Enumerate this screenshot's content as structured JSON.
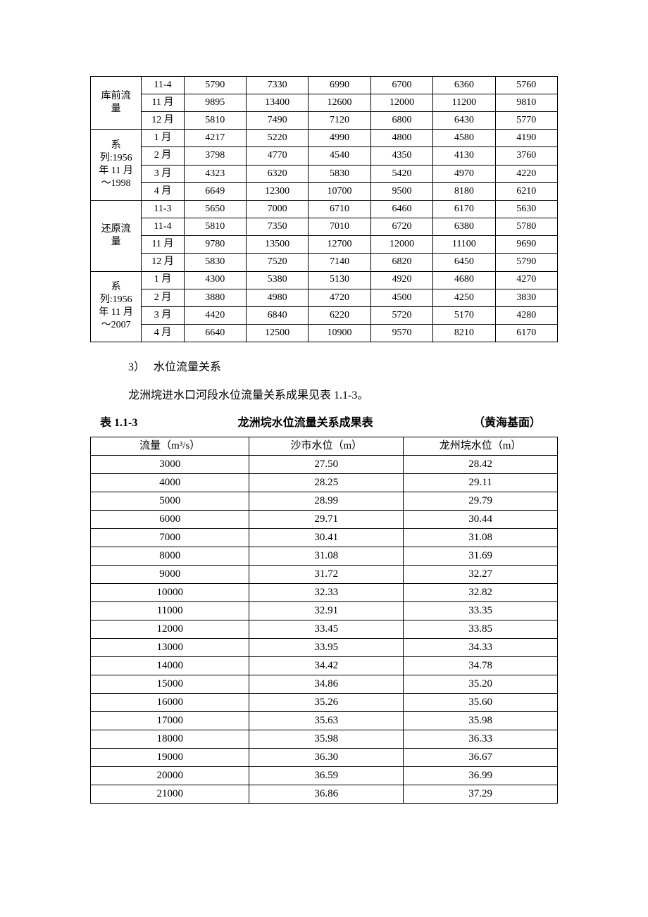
{
  "table1": {
    "col_widths": {
      "label": 72,
      "month": 60,
      "val": 88
    },
    "groups": [
      {
        "label": "库前流\n量",
        "label_rows": 3,
        "rows": [
          {
            "month": "11-4",
            "vals": [
              "5790",
              "7330",
              "6990",
              "6700",
              "6360",
              "5760"
            ]
          },
          {
            "month": "11 月",
            "vals": [
              "9895",
              "13400",
              "12600",
              "12000",
              "11200",
              "9810"
            ]
          },
          {
            "month": "12 月",
            "vals": [
              "5810",
              "7490",
              "7120",
              "6800",
              "6430",
              "5770"
            ]
          }
        ]
      },
      {
        "label": "系\n列:1956\n年 11 月\n～1998",
        "label_rows": 4,
        "rows": [
          {
            "month": "1 月",
            "vals": [
              "4217",
              "5220",
              "4990",
              "4800",
              "4580",
              "4190"
            ]
          },
          {
            "month": "2 月",
            "vals": [
              "3798",
              "4770",
              "4540",
              "4350",
              "4130",
              "3760"
            ]
          },
          {
            "month": "3 月",
            "vals": [
              "4323",
              "6320",
              "5830",
              "5420",
              "4970",
              "4220"
            ]
          },
          {
            "month": "4 月",
            "vals": [
              "6649",
              "12300",
              "10700",
              "9500",
              "8180",
              "6210"
            ]
          }
        ]
      },
      {
        "label": "还原流\n量",
        "label_rows": 4,
        "rows": [
          {
            "month": "11-3",
            "vals": [
              "5650",
              "7000",
              "6710",
              "6460",
              "6170",
              "5630"
            ]
          },
          {
            "month": "11-4",
            "vals": [
              "5810",
              "7350",
              "7010",
              "6720",
              "6380",
              "5780"
            ]
          },
          {
            "month": "11 月",
            "vals": [
              "9780",
              "13500",
              "12700",
              "12000",
              "11100",
              "9690"
            ]
          },
          {
            "month": "12 月",
            "vals": [
              "5830",
              "7520",
              "7140",
              "6820",
              "6450",
              "5790"
            ]
          }
        ]
      },
      {
        "label": "系\n列:1956\n年 11 月\n～2007",
        "label_rows": 4,
        "rows": [
          {
            "month": "1 月",
            "vals": [
              "4300",
              "5380",
              "5130",
              "4920",
              "4680",
              "4270"
            ]
          },
          {
            "month": "2 月",
            "vals": [
              "3880",
              "4980",
              "4720",
              "4500",
              "4250",
              "3830"
            ]
          },
          {
            "month": "3 月",
            "vals": [
              "4420",
              "6840",
              "6220",
              "5720",
              "5170",
              "4280"
            ]
          },
          {
            "month": "4 月",
            "vals": [
              "6640",
              "12500",
              "10900",
              "9570",
              "8210",
              "6170"
            ]
          }
        ]
      }
    ]
  },
  "para1_num": "3）",
  "para1_title": "水位流量关系",
  "para2": "龙洲垸进水口河段水位流量关系成果见表 1.1-3。",
  "caption": {
    "left": "表 1.1-3",
    "mid": "龙洲垸水位流量关系成果表",
    "right": "（黄海基面）"
  },
  "table2": {
    "headers": [
      "流量（m³/s）",
      "沙市水位（m）",
      "龙州垸水位（m）"
    ],
    "rows": [
      [
        "3000",
        "27.50",
        "28.42"
      ],
      [
        "4000",
        "28.25",
        "29.11"
      ],
      [
        "5000",
        "28.99",
        "29.79"
      ],
      [
        "6000",
        "29.71",
        "30.44"
      ],
      [
        "7000",
        "30.41",
        "31.08"
      ],
      [
        "8000",
        "31.08",
        "31.69"
      ],
      [
        "9000",
        "31.72",
        "32.27"
      ],
      [
        "10000",
        "32.33",
        "32.82"
      ],
      [
        "11000",
        "32.91",
        "33.35"
      ],
      [
        "12000",
        "33.45",
        "33.85"
      ],
      [
        "13000",
        "33.95",
        "34.33"
      ],
      [
        "14000",
        "34.42",
        "34.78"
      ],
      [
        "15000",
        "34.86",
        "35.20"
      ],
      [
        "16000",
        "35.26",
        "35.60"
      ],
      [
        "17000",
        "35.63",
        "35.98"
      ],
      [
        "18000",
        "35.98",
        "36.33"
      ],
      [
        "19000",
        "36.30",
        "36.67"
      ],
      [
        "20000",
        "36.59",
        "36.99"
      ],
      [
        "21000",
        "36.86",
        "37.29"
      ]
    ]
  }
}
